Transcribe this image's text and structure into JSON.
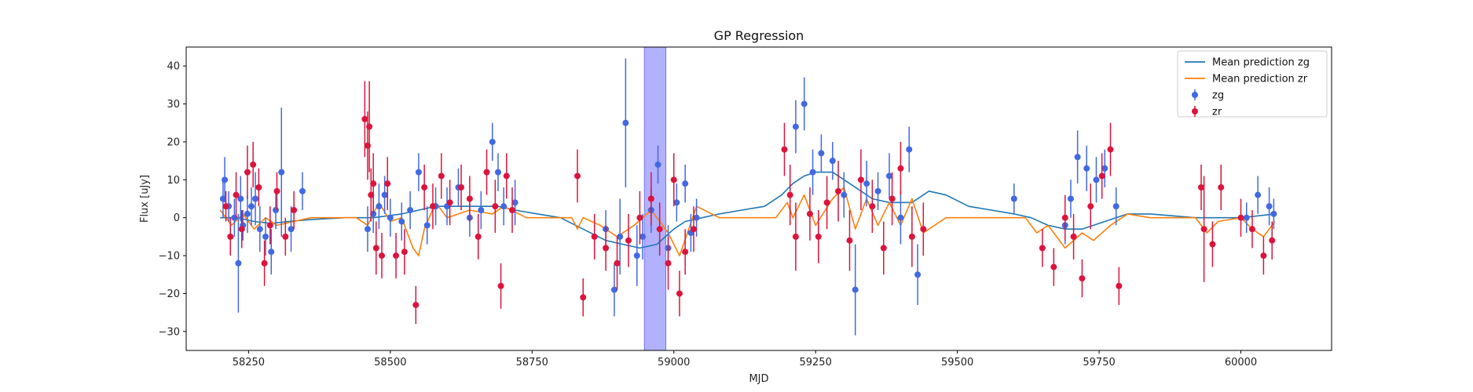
{
  "chart_data": {
    "type": "scatter",
    "title": "GP Regression",
    "xlabel": "MJD",
    "ylabel": "Flux [uJy]",
    "xlim": [
      58140,
      60160
    ],
    "ylim": [
      -35,
      45
    ],
    "xticks": [
      58250,
      58500,
      58750,
      59000,
      59250,
      59500,
      59750,
      60000
    ],
    "yticks": [
      -30,
      -20,
      -10,
      0,
      10,
      20,
      30,
      40
    ],
    "grid": false,
    "legend_position": "top-right",
    "highlight_span": {
      "x0": 58948,
      "x1": 58986,
      "color": "#a8a8ff"
    },
    "series": [
      {
        "name": "Mean prediction zg",
        "kind": "line",
        "color": "#1f77b4",
        "x": [
          58200,
          58230,
          58260,
          58290,
          58320,
          58360,
          58420,
          58470,
          58520,
          58580,
          58620,
          58660,
          58690,
          58720,
          58760,
          58800,
          58840,
          58880,
          58910,
          58940,
          58970,
          59000,
          59020,
          59050,
          59080,
          59120,
          59160,
          59190,
          59210,
          59230,
          59250,
          59280,
          59310,
          59350,
          59380,
          59420,
          59450,
          59480,
          59520,
          59560,
          59600,
          59630,
          59660,
          59690,
          59720,
          59760,
          59800,
          59840,
          59880,
          59920,
          59960,
          60000,
          60030,
          60060
        ],
        "y": [
          0,
          0,
          -1,
          -1.5,
          -1,
          -0.5,
          0,
          0,
          1,
          3,
          3,
          3,
          3,
          2,
          1,
          0,
          -3,
          -6,
          -7,
          -8,
          -7,
          -3,
          -1,
          0,
          1,
          2,
          3,
          6,
          9,
          11,
          12,
          12,
          9,
          5,
          4,
          4,
          7,
          6,
          3,
          2,
          1,
          0,
          -2,
          -3,
          -3,
          -1,
          1,
          1,
          0.5,
          0,
          0,
          0,
          0.5,
          1
        ]
      },
      {
        "name": "Mean prediction zr",
        "kind": "line",
        "color": "#ff7f0e",
        "x": [
          58200,
          58220,
          58240,
          58260,
          58280,
          58300,
          58330,
          58360,
          58400,
          58440,
          58460,
          58480,
          58500,
          58520,
          58540,
          58550,
          58560,
          58580,
          58600,
          58640,
          58680,
          58700,
          58740,
          58780,
          58820,
          58830,
          58840,
          58870,
          58900,
          58930,
          58960,
          58990,
          59010,
          59040,
          59080,
          59120,
          59160,
          59180,
          59200,
          59210,
          59230,
          59250,
          59280,
          59300,
          59320,
          59340,
          59360,
          59380,
          59400,
          59420,
          59440,
          59480,
          59520,
          59560,
          59620,
          59640,
          59660,
          59690,
          59720,
          59740,
          59770,
          59800,
          59840,
          59880,
          59920,
          59940,
          59960,
          60000,
          60020,
          60040,
          60060
        ],
        "y": [
          2,
          -2,
          1,
          -3,
          0,
          -2,
          -1,
          0,
          0,
          0,
          -2,
          4,
          -1,
          0,
          -8,
          -10,
          -3,
          4,
          0,
          2,
          1,
          3,
          0,
          0,
          0,
          -3,
          0,
          -2,
          -5,
          -2,
          2,
          -4,
          -10,
          3,
          0,
          0,
          0,
          0,
          4,
          0,
          6,
          -2,
          5,
          8,
          -3,
          5,
          -2,
          4,
          -2,
          5,
          -4,
          0,
          0,
          0,
          0,
          -4,
          -2,
          -8,
          -4,
          -6,
          -2,
          1,
          0,
          0,
          0,
          -4,
          -1,
          0,
          -3,
          -5,
          -1
        ]
      },
      {
        "name": "zg",
        "kind": "errorbar",
        "color": "#4169e1",
        "x": [
          58205,
          58208,
          58215,
          58225,
          58232,
          58236,
          58240,
          58248,
          58255,
          58262,
          58270,
          58280,
          58290,
          58298,
          58308,
          58325,
          58345,
          58460,
          58470,
          58480,
          58490,
          58500,
          58520,
          58535,
          58550,
          58565,
          58580,
          58600,
          58620,
          58640,
          58660,
          58680,
          58690,
          58700,
          58720,
          58880,
          58895,
          58905,
          58915,
          58935,
          58945,
          58960,
          58972,
          58990,
          59005,
          59020,
          59030,
          59040,
          59215,
          59230,
          59245,
          59260,
          59280,
          59300,
          59320,
          59340,
          59360,
          59380,
          59400,
          59415,
          59430,
          59600,
          59690,
          59700,
          59712,
          59728,
          59745,
          59760,
          59780,
          60010,
          60030,
          60050,
          60058
        ],
        "y": [
          5,
          10,
          3,
          0,
          -12,
          5,
          -2,
          1,
          3,
          5,
          -3,
          -5,
          -9,
          2,
          12,
          -3,
          7,
          -3,
          1,
          3,
          6,
          0,
          -1,
          2,
          12,
          -2,
          3,
          3,
          8,
          0,
          2,
          20,
          12,
          3,
          4,
          -3,
          -19,
          -5,
          25,
          -10,
          -5,
          2,
          14,
          -8,
          4,
          9,
          -4,
          0,
          24,
          30,
          12,
          17,
          15,
          6,
          -19,
          9,
          7,
          11,
          0,
          18,
          -15,
          5,
          -2,
          5,
          16,
          13,
          10,
          13,
          3,
          0,
          6,
          3,
          1
        ],
        "err": [
          5,
          6,
          4,
          5,
          13,
          6,
          4,
          5,
          5,
          7,
          6,
          5,
          6,
          5,
          17,
          6,
          5,
          6,
          5,
          6,
          5,
          5,
          5,
          5,
          5,
          5,
          5,
          5,
          5,
          5,
          5,
          5,
          5,
          5,
          6,
          5,
          7,
          10,
          17,
          8,
          6,
          6,
          5,
          6,
          5,
          5,
          5,
          5,
          7,
          7,
          6,
          5,
          5,
          6,
          12,
          6,
          5,
          6,
          7,
          6,
          8,
          4,
          5,
          5,
          7,
          6,
          6,
          5,
          5,
          4,
          5,
          5,
          4
        ]
      },
      {
        "name": "zr",
        "kind": "errorbar",
        "color": "#dc143c",
        "x": [
          58210,
          58218,
          58228,
          58238,
          58248,
          58258,
          58268,
          58278,
          58288,
          58300,
          58315,
          58330,
          58455,
          58460,
          58463,
          58466,
          58470,
          58475,
          58485,
          58495,
          58510,
          58525,
          58545,
          58560,
          58575,
          58590,
          58605,
          58625,
          58640,
          58655,
          58670,
          58685,
          58695,
          58705,
          58715,
          58830,
          58840,
          58860,
          58880,
          58900,
          58920,
          58940,
          58960,
          58975,
          58990,
          59000,
          59010,
          59020,
          59035,
          59195,
          59205,
          59215,
          59240,
          59255,
          59270,
          59290,
          59310,
          59330,
          59350,
          59370,
          59385,
          59400,
          59420,
          59440,
          59650,
          59670,
          59690,
          59705,
          59720,
          59735,
          59755,
          59770,
          59785,
          59930,
          59935,
          59950,
          59965,
          60000,
          60020,
          60040,
          60055
        ],
        "y": [
          3,
          -5,
          6,
          -3,
          12,
          14,
          8,
          -12,
          -2,
          7,
          -5,
          2,
          26,
          19,
          24,
          6,
          9,
          -8,
          -10,
          9,
          -10,
          -9,
          -23,
          8,
          3,
          11,
          4,
          8,
          5,
          -5,
          12,
          3,
          -18,
          11,
          2,
          11,
          -21,
          -5,
          -8,
          -12,
          -6,
          0,
          5,
          -3,
          -12,
          10,
          -20,
          -9,
          -3,
          18,
          6,
          -5,
          1,
          -5,
          4,
          7,
          -6,
          10,
          3,
          -8,
          5,
          13,
          -5,
          -3,
          -8,
          -13,
          0,
          -5,
          -16,
          3,
          11,
          18,
          -18,
          8,
          -3,
          -7,
          8,
          0,
          -3,
          -10,
          -6
        ],
        "err": [
          4,
          5,
          6,
          5,
          7,
          6,
          5,
          6,
          5,
          5,
          5,
          5,
          10,
          9,
          12,
          7,
          8,
          7,
          6,
          7,
          6,
          6,
          5,
          6,
          6,
          6,
          6,
          6,
          6,
          6,
          6,
          7,
          6,
          6,
          6,
          7,
          5,
          6,
          6,
          7,
          7,
          7,
          7,
          7,
          7,
          7,
          6,
          6,
          6,
          7,
          8,
          9,
          7,
          7,
          7,
          8,
          8,
          8,
          7,
          7,
          7,
          7,
          8,
          7,
          5,
          5,
          6,
          6,
          5,
          6,
          6,
          7,
          5,
          6,
          14,
          6,
          6,
          5,
          5,
          5,
          5
        ]
      }
    ]
  }
}
